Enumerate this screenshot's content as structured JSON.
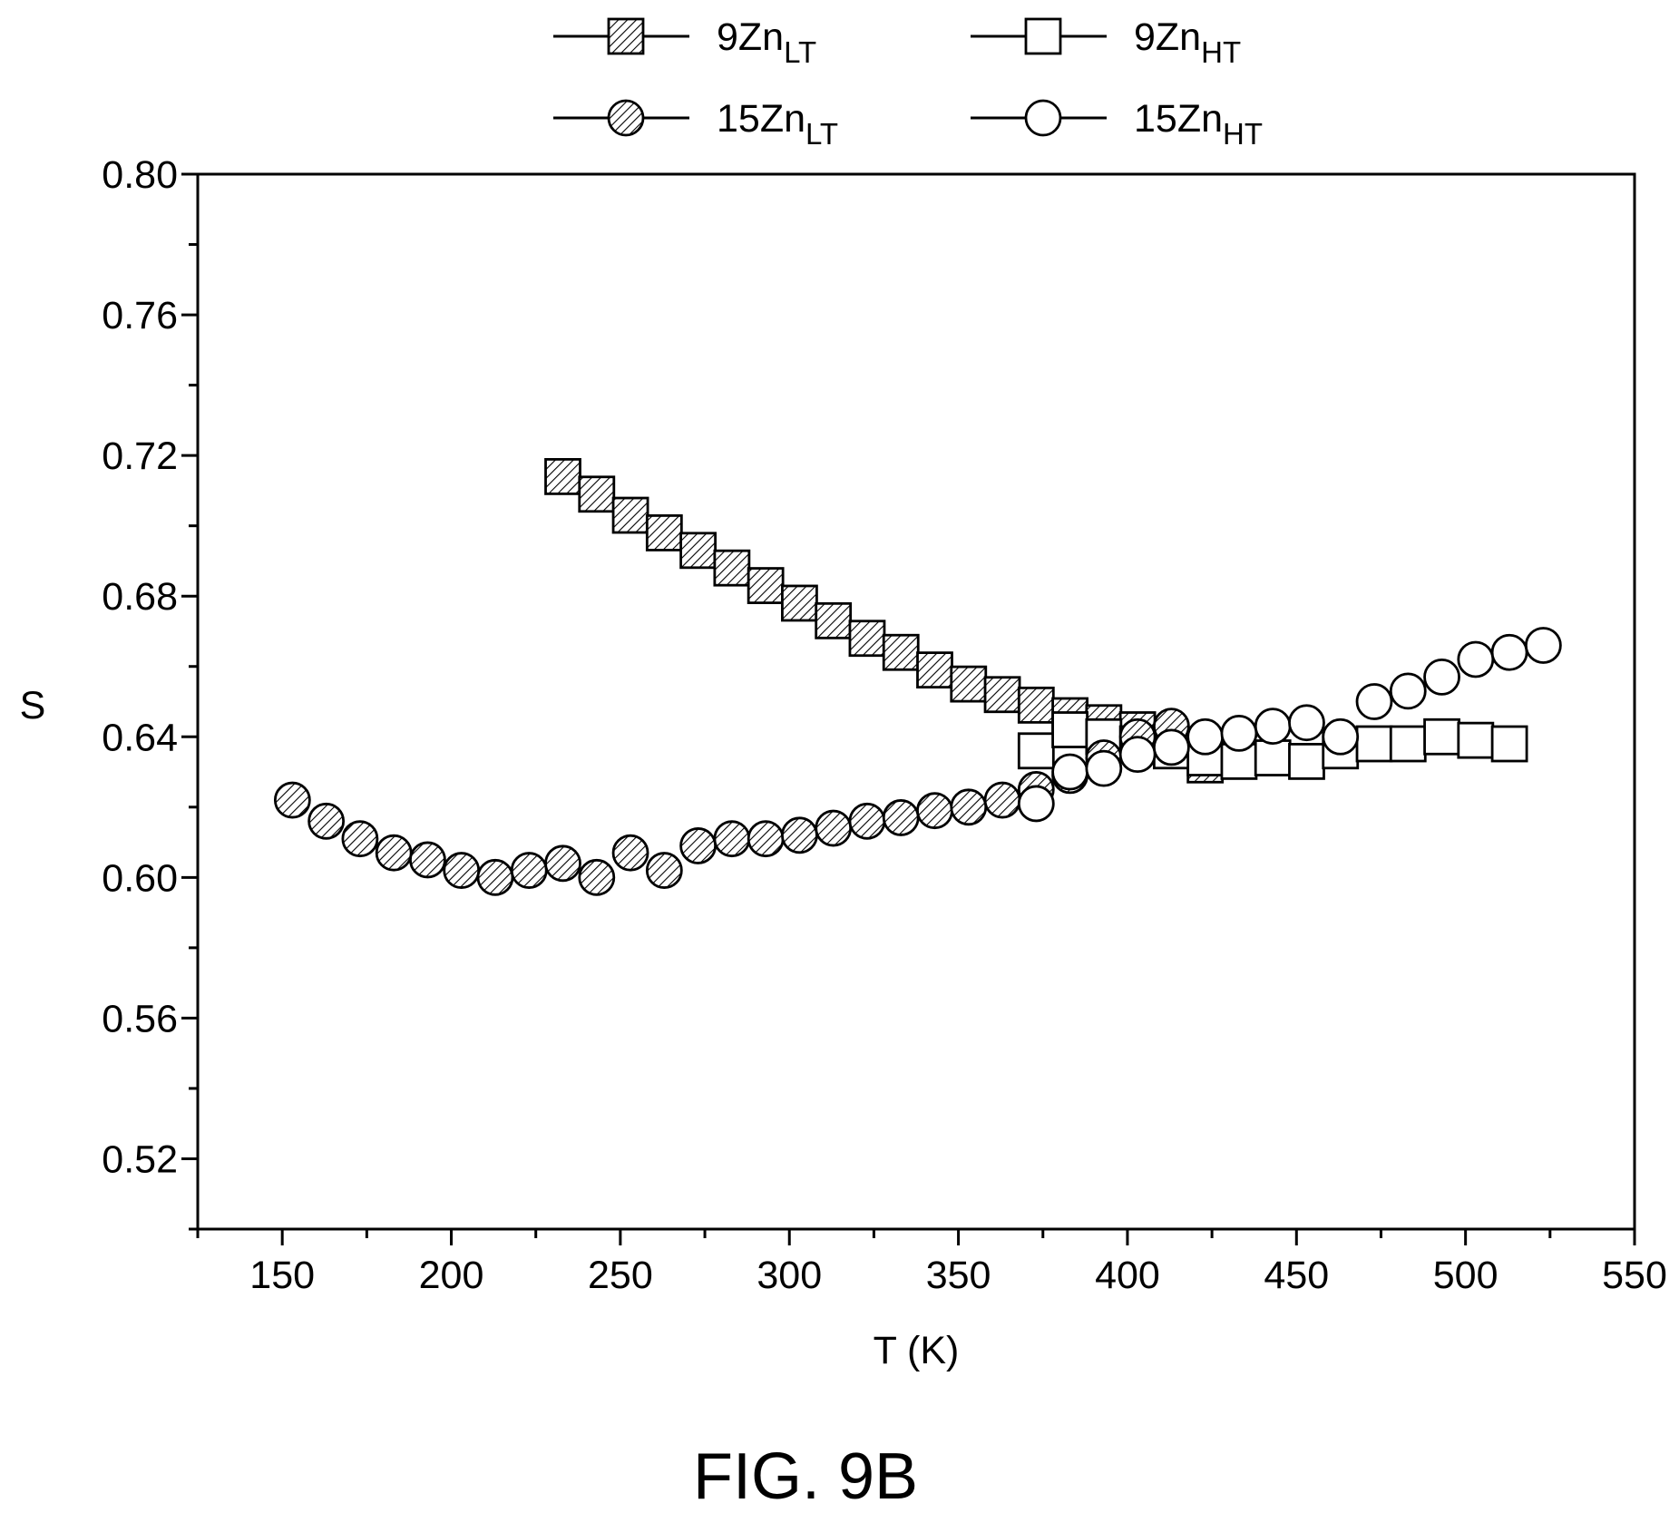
{
  "figure_label": "FIG. 9B",
  "colors": {
    "ink": "#000000",
    "marker_fill_open": "#ffffff",
    "hatch": "#000000"
  },
  "chart_data": {
    "type": "scatter",
    "xlabel": "T (K)",
    "ylabel": "S",
    "xlim": [
      125,
      550
    ],
    "ylim": [
      0.5,
      0.8
    ],
    "x_ticks": [
      150,
      200,
      250,
      300,
      350,
      400,
      450,
      500,
      550
    ],
    "y_ticks": [
      0.52,
      0.56,
      0.6,
      0.64,
      0.68,
      0.72,
      0.76,
      0.8
    ],
    "x_tick_labels": [
      "150",
      "200",
      "250",
      "300",
      "350",
      "400",
      "450",
      "500",
      "550"
    ],
    "y_tick_labels": [
      "0.52",
      "0.56",
      "0.60",
      "0.64",
      "0.68",
      "0.72",
      "0.76",
      "0.80"
    ],
    "grid": false,
    "legend_position": "top-center, above plot, 2 columns",
    "series": [
      {
        "name": "9Zn",
        "subscript": "LT",
        "marker": "square",
        "fill": "hatched",
        "x": [
          233,
          243,
          253,
          263,
          273,
          283,
          293,
          303,
          313,
          323,
          333,
          343,
          353,
          363,
          373,
          383,
          393,
          403,
          413,
          423
        ],
        "y": [
          0.714,
          0.709,
          0.703,
          0.698,
          0.693,
          0.688,
          0.683,
          0.678,
          0.673,
          0.668,
          0.664,
          0.659,
          0.655,
          0.652,
          0.649,
          0.646,
          0.644,
          0.642,
          0.637,
          0.632
        ]
      },
      {
        "name": "9Zn",
        "subscript": "HT",
        "marker": "square",
        "fill": "open",
        "x": [
          373,
          383,
          393,
          403,
          413,
          423,
          433,
          443,
          453,
          463,
          473,
          483,
          493,
          503,
          513
        ],
        "y": [
          0.636,
          0.642,
          0.64,
          0.638,
          0.636,
          0.634,
          0.633,
          0.634,
          0.633,
          0.636,
          0.638,
          0.638,
          0.64,
          0.639,
          0.638
        ]
      },
      {
        "name": "15Zn",
        "subscript": "LT",
        "marker": "circle",
        "fill": "hatched",
        "x": [
          153,
          163,
          173,
          183,
          193,
          203,
          213,
          223,
          233,
          243,
          253,
          263,
          273,
          283,
          293,
          303,
          313,
          323,
          333,
          343,
          353,
          363,
          373,
          383,
          393,
          403,
          413
        ],
        "y": [
          0.622,
          0.616,
          0.611,
          0.607,
          0.605,
          0.602,
          0.6,
          0.602,
          0.604,
          0.6,
          0.607,
          0.602,
          0.609,
          0.611,
          0.611,
          0.612,
          0.614,
          0.616,
          0.617,
          0.619,
          0.62,
          0.622,
          0.625,
          0.629,
          0.634,
          0.64,
          0.643
        ]
      },
      {
        "name": "15Zn",
        "subscript": "HT",
        "marker": "circle",
        "fill": "open",
        "x": [
          373,
          383,
          393,
          403,
          413,
          423,
          433,
          443,
          453,
          463,
          473,
          483,
          493,
          503,
          513,
          523
        ],
        "y": [
          0.621,
          0.63,
          0.631,
          0.635,
          0.637,
          0.64,
          0.641,
          0.643,
          0.644,
          0.64,
          0.65,
          0.653,
          0.657,
          0.662,
          0.664,
          0.666
        ]
      }
    ]
  }
}
